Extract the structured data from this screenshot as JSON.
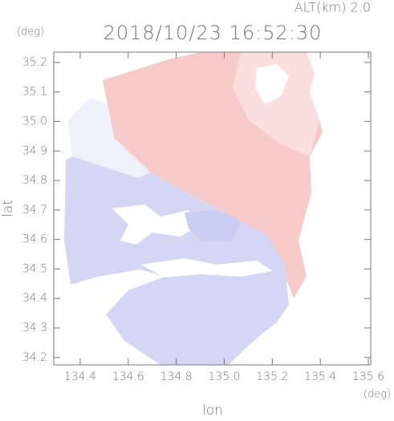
{
  "chart_data": {
    "type": "radar-field",
    "title": "2018/10/23 16:52:30",
    "subtitle": "ALT(km) 2.0",
    "x_label": "lon",
    "y_label": "lat",
    "x_unit": "(deg)",
    "y_unit": "(deg)",
    "xlim": [
      134.29,
      135.61
    ],
    "xticks": [
      134.4,
      134.6,
      134.8,
      {
        "value": 135,
        "label": "135.0"
      },
      135.2,
      135.4,
      135.6
    ],
    "ylim": [
      34.175,
      35.235
    ],
    "yticks": [
      34.2,
      34.3,
      34.4,
      34.5,
      34.6,
      34.7,
      34.8,
      34.9,
      {
        "value": 35,
        "label": "35.0"
      },
      35.1,
      35.2
    ]
  }
}
